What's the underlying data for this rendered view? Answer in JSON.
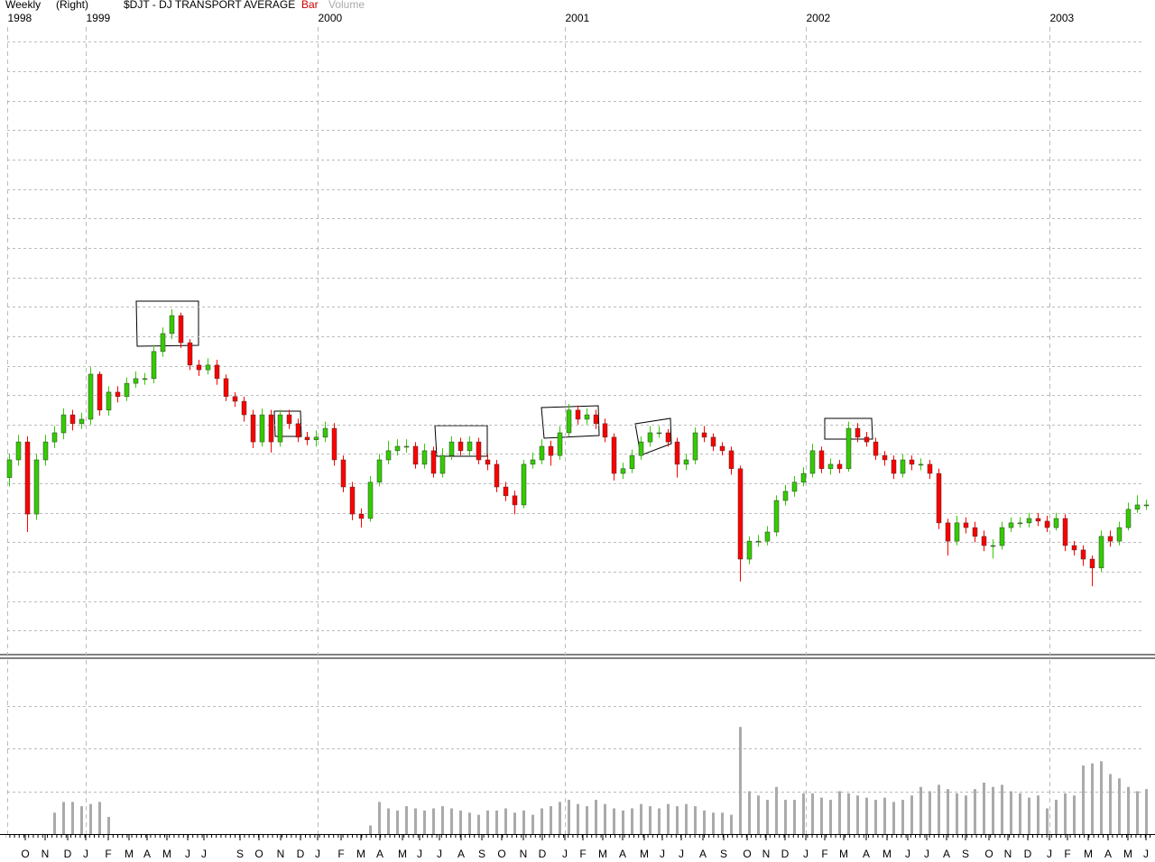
{
  "chart_data": {
    "type": "candlestick",
    "period": "Weekly",
    "axis_side": "(Right)",
    "title": "$DJT - DJ TRANSPORT AVERAGE",
    "style_label": "Bar",
    "volume_label": "Volume",
    "up_color": "#33cc00",
    "down_color": "#ff0000",
    "volume_color": "#aaaaaa",
    "xlim": [
      -1,
      127
    ],
    "ylim": [
      4,
      215
    ],
    "ygrid": [
      10,
      20,
      30,
      40,
      50,
      60,
      70,
      80,
      90,
      100,
      110,
      120,
      130,
      140,
      150,
      160,
      170,
      180,
      190,
      200,
      210
    ],
    "volume_lim": [
      0,
      4
    ],
    "volume_grid": [
      1,
      2,
      3
    ],
    "year_ticks": [
      {
        "value": -0.2,
        "label": "1998"
      },
      {
        "value": 8.5,
        "label": "1999"
      },
      {
        "value": 34.2,
        "label": "2000"
      },
      {
        "value": 61.6,
        "label": "2001"
      },
      {
        "value": 88.3,
        "label": "2002"
      },
      {
        "value": 115.3,
        "label": "2003"
      }
    ],
    "xticks": [
      {
        "value": 1.8,
        "label": "O"
      },
      {
        "value": 4.0,
        "label": "N"
      },
      {
        "value": 6.5,
        "label": "D"
      },
      {
        "value": 8.5,
        "label": "J"
      },
      {
        "value": 11.0,
        "label": "F"
      },
      {
        "value": 13.3,
        "label": "M"
      },
      {
        "value": 15.3,
        "label": "A"
      },
      {
        "value": 17.5,
        "label": "M"
      },
      {
        "value": 19.8,
        "label": "J"
      },
      {
        "value": 21.6,
        "label": "J"
      },
      {
        "value": 25.6,
        "label": "S"
      },
      {
        "value": 27.7,
        "label": "O"
      },
      {
        "value": 30.1,
        "label": "N"
      },
      {
        "value": 32.3,
        "label": "D"
      },
      {
        "value": 34.2,
        "label": "J"
      },
      {
        "value": 36.8,
        "label": "F"
      },
      {
        "value": 39.0,
        "label": "M"
      },
      {
        "value": 41.1,
        "label": "A"
      },
      {
        "value": 43.6,
        "label": "M"
      },
      {
        "value": 45.5,
        "label": "J"
      },
      {
        "value": 47.7,
        "label": "J"
      },
      {
        "value": 50.1,
        "label": "A"
      },
      {
        "value": 52.4,
        "label": "S"
      },
      {
        "value": 54.6,
        "label": "O"
      },
      {
        "value": 57.0,
        "label": "N"
      },
      {
        "value": 59.1,
        "label": "D"
      },
      {
        "value": 61.6,
        "label": "J"
      },
      {
        "value": 63.6,
        "label": "F"
      },
      {
        "value": 65.8,
        "label": "M"
      },
      {
        "value": 68.0,
        "label": "A"
      },
      {
        "value": 70.4,
        "label": "M"
      },
      {
        "value": 72.4,
        "label": "J"
      },
      {
        "value": 74.5,
        "label": "J"
      },
      {
        "value": 76.9,
        "label": "A"
      },
      {
        "value": 79.2,
        "label": "S"
      },
      {
        "value": 81.8,
        "label": "O"
      },
      {
        "value": 83.9,
        "label": "N"
      },
      {
        "value": 86.0,
        "label": "D"
      },
      {
        "value": 88.3,
        "label": "J"
      },
      {
        "value": 90.4,
        "label": "F"
      },
      {
        "value": 92.5,
        "label": "M"
      },
      {
        "value": 95.0,
        "label": "A"
      },
      {
        "value": 97.3,
        "label": "M"
      },
      {
        "value": 99.6,
        "label": "J"
      },
      {
        "value": 101.7,
        "label": "J"
      },
      {
        "value": 103.9,
        "label": "A"
      },
      {
        "value": 106.0,
        "label": "S"
      },
      {
        "value": 108.6,
        "label": "O"
      },
      {
        "value": 110.7,
        "label": "N"
      },
      {
        "value": 112.9,
        "label": "D"
      },
      {
        "value": 115.3,
        "label": "J"
      },
      {
        "value": 117.3,
        "label": "F"
      },
      {
        "value": 119.6,
        "label": "M"
      },
      {
        "value": 121.8,
        "label": "A"
      },
      {
        "value": 124.0,
        "label": "M"
      },
      {
        "value": 126.0,
        "label": "J"
      }
    ],
    "open": [
      62.0,
      68.0,
      74.1,
      49.6,
      68.0,
      74.1,
      77.2,
      83.3,
      80.3,
      81.8,
      97.1,
      84.9,
      91.0,
      89.5,
      94.0,
      95.6,
      95.6,
      104.8,
      110.9,
      117.0,
      107.8,
      100.2,
      98.6,
      100.2,
      95.6,
      89.5,
      87.9,
      83.3,
      74.1,
      83.3,
      74.1,
      83.3,
      80.3,
      75.7,
      74.8,
      75.7,
      78.7,
      68.0,
      58.8,
      49.6,
      48.1,
      60.4,
      68.0,
      71.1,
      72.6,
      72.6,
      66.5,
      71.1,
      63.4,
      69.5,
      74.1,
      71.1,
      74.1,
      68.0,
      66.5,
      58.8,
      55.8,
      52.7,
      66.5,
      68.0,
      72.6,
      69.5,
      77.2,
      84.9,
      81.8,
      83.3,
      80.3,
      75.7,
      63.4,
      65.0,
      69.5,
      74.1,
      77.2,
      77.2,
      74.1,
      66.5,
      68.0,
      77.2,
      75.7,
      72.6,
      71.1,
      65.0,
      34.3,
      40.4,
      40.4,
      43.5,
      54.2,
      57.3,
      60.4,
      63.4,
      71.1,
      65.0,
      66.5,
      65.0,
      78.7,
      75.7,
      74.1,
      69.5,
      68.0,
      63.4,
      68.0,
      66.5,
      66.5,
      63.4,
      46.6,
      40.4,
      46.6,
      45.0,
      42.0,
      38.9,
      38.9,
      45.0,
      46.6,
      46.6,
      48.1,
      47.2,
      45.0,
      48.1,
      38.9,
      37.4,
      34.3,
      31.3,
      42.0,
      40.4,
      45.0,
      51.2,
      52.7
    ],
    "high": [
      70.0,
      76.5,
      76.0,
      70.0,
      76.5,
      79.5,
      85.5,
      85.0,
      84.0,
      99.5,
      98.0,
      93.0,
      93.0,
      96.0,
      98.0,
      97.5,
      107.0,
      113.0,
      119.2,
      118.0,
      109.0,
      102.0,
      102.5,
      102.0,
      97.0,
      91.0,
      89.5,
      85.0,
      85.5,
      85.0,
      85.0,
      85.0,
      82.0,
      77.5,
      78.0,
      81.0,
      80.5,
      69.5,
      60.5,
      51.5,
      62.5,
      70.0,
      74.5,
      75.0,
      75.0,
      74.0,
      73.5,
      72.5,
      72.0,
      76.0,
      75.5,
      76.0,
      75.5,
      70.0,
      68.0,
      60.5,
      57.5,
      68.0,
      70.5,
      75.0,
      74.5,
      79.5,
      87.0,
      86.5,
      85.5,
      85.0,
      82.0,
      77.0,
      67.0,
      71.5,
      76.0,
      79.5,
      79.5,
      78.5,
      75.5,
      70.0,
      79.0,
      79.5,
      77.0,
      74.0,
      72.5,
      66.0,
      42.0,
      42.5,
      45.5,
      56.0,
      59.5,
      62.5,
      65.5,
      73.5,
      72.5,
      68.5,
      68.0,
      81.0,
      80.5,
      77.5,
      75.5,
      71.0,
      69.5,
      70.0,
      69.5,
      68.5,
      68.0,
      65.0,
      48.0,
      49.0,
      48.5,
      47.0,
      44.0,
      41.0,
      47.0,
      48.5,
      48.5,
      50.0,
      50.0,
      49.0,
      50.0,
      49.5,
      40.5,
      39.0,
      35.5,
      44.0,
      44.0,
      47.0,
      53.5,
      56.0,
      54.5
    ],
    "low": [
      59.0,
      66.0,
      43.5,
      47.6,
      66.0,
      72.0,
      75.0,
      78.0,
      78.5,
      80.0,
      83.0,
      83.0,
      87.5,
      88.0,
      92.5,
      93.5,
      94.0,
      103.0,
      109.0,
      106.0,
      98.5,
      96.5,
      97.0,
      93.5,
      88.0,
      86.0,
      81.0,
      72.0,
      72.5,
      70.5,
      72.5,
      78.5,
      74.0,
      73.0,
      72.5,
      74.0,
      66.0,
      57.0,
      47.5,
      45.0,
      47.0,
      59.0,
      66.5,
      69.5,
      70.5,
      65.0,
      65.0,
      62.0,
      62.0,
      68.0,
      69.5,
      69.5,
      66.5,
      64.5,
      57.0,
      54.0,
      49.5,
      51.5,
      65.0,
      66.5,
      66.0,
      68.0,
      76.0,
      80.0,
      80.0,
      78.5,
      74.0,
      61.0,
      61.5,
      63.5,
      68.0,
      72.5,
      75.5,
      72.5,
      62.0,
      64.5,
      66.5,
      74.0,
      71.0,
      69.5,
      63.0,
      26.7,
      32.5,
      38.5,
      39.0,
      42.0,
      52.5,
      55.5,
      59.0,
      62.0,
      63.5,
      63.0,
      63.5,
      64.0,
      74.0,
      72.5,
      68.0,
      66.0,
      61.5,
      62.0,
      64.5,
      64.5,
      61.5,
      44.5,
      35.5,
      39.0,
      43.0,
      40.0,
      37.0,
      34.5,
      37.5,
      43.5,
      45.0,
      45.0,
      45.5,
      43.5,
      44.0,
      37.0,
      35.5,
      32.0,
      25.1,
      30.0,
      38.5,
      39.0,
      44.0,
      50.0,
      51.0
    ],
    "close": [
      68.0,
      74.1,
      49.6,
      68.0,
      74.1,
      77.2,
      83.3,
      80.3,
      81.8,
      97.1,
      84.9,
      91.0,
      89.5,
      94.0,
      95.6,
      95.6,
      104.8,
      110.9,
      117.0,
      107.8,
      100.2,
      98.6,
      100.2,
      95.6,
      89.5,
      87.9,
      83.3,
      74.1,
      83.3,
      74.1,
      83.3,
      80.3,
      75.7,
      74.8,
      75.7,
      78.7,
      68.0,
      58.8,
      49.6,
      48.1,
      60.4,
      68.0,
      71.1,
      72.6,
      72.6,
      66.5,
      71.1,
      63.4,
      69.5,
      74.1,
      71.1,
      74.1,
      68.0,
      66.5,
      58.8,
      55.8,
      52.7,
      66.5,
      68.0,
      72.6,
      69.5,
      77.2,
      84.9,
      81.8,
      83.3,
      80.3,
      75.7,
      63.4,
      65.0,
      69.5,
      74.1,
      77.2,
      77.2,
      74.1,
      66.5,
      68.0,
      77.2,
      75.7,
      72.6,
      71.1,
      65.0,
      34.3,
      40.4,
      40.4,
      43.5,
      54.2,
      57.3,
      60.4,
      63.4,
      71.1,
      65.0,
      66.5,
      65.0,
      78.7,
      75.7,
      74.1,
      69.5,
      68.0,
      63.4,
      68.0,
      66.5,
      66.5,
      63.4,
      46.6,
      40.4,
      46.6,
      45.0,
      42.0,
      38.9,
      38.9,
      45.0,
      46.6,
      46.6,
      48.1,
      47.2,
      45.0,
      48.1,
      38.9,
      37.4,
      34.3,
      31.3,
      42.0,
      40.4,
      45.0,
      51.2,
      52.7,
      52.7
    ],
    "volume": [
      null,
      null,
      null,
      null,
      null,
      0.5,
      0.75,
      0.75,
      0.65,
      0.7,
      0.75,
      0.4,
      null,
      null,
      null,
      null,
      null,
      null,
      null,
      null,
      null,
      null,
      null,
      null,
      null,
      null,
      null,
      null,
      null,
      null,
      null,
      null,
      null,
      null,
      null,
      null,
      null,
      null,
      null,
      null,
      0.2,
      0.75,
      0.6,
      0.55,
      0.65,
      0.6,
      0.55,
      0.6,
      0.65,
      0.6,
      0.55,
      0.5,
      0.45,
      0.55,
      0.55,
      0.6,
      0.5,
      0.55,
      0.45,
      0.6,
      0.65,
      0.75,
      0.8,
      0.7,
      0.65,
      0.8,
      0.7,
      0.6,
      0.55,
      0.6,
      0.7,
      0.65,
      0.6,
      0.7,
      0.65,
      0.7,
      0.65,
      0.55,
      0.5,
      0.5,
      0.45,
      2.5,
      1.0,
      0.9,
      0.8,
      1.1,
      0.8,
      0.8,
      0.95,
      0.95,
      0.85,
      0.8,
      1.0,
      0.95,
      0.9,
      0.85,
      0.8,
      0.85,
      0.75,
      0.8,
      0.9,
      1.1,
      1.0,
      1.15,
      1.05,
      0.95,
      0.9,
      1.05,
      1.2,
      1.1,
      1.15,
      1.0,
      0.95,
      0.85,
      0.9,
      0.6,
      0.8,
      0.95,
      0.9,
      1.6,
      1.65,
      1.7,
      1.4,
      1.3,
      1.1,
      1.0,
      1.05
    ]
  }
}
